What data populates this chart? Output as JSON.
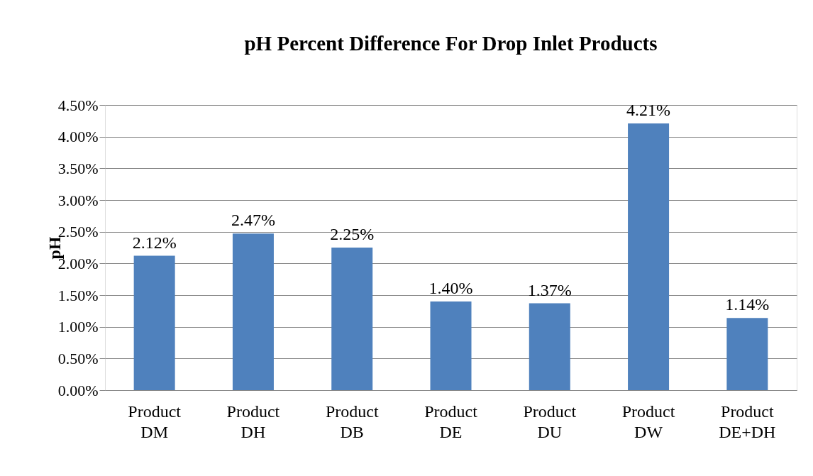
{
  "chart_data": {
    "type": "bar",
    "title": "pH Percent Difference  For Drop Inlet Products",
    "ylabel": "pH",
    "categories": [
      "Product DM",
      "Product DH",
      "Product DB",
      "Product DE",
      "Product DU",
      "Product DW",
      "Product DE+DH"
    ],
    "values": [
      2.12,
      2.47,
      2.25,
      1.4,
      1.37,
      4.21,
      1.14
    ],
    "value_labels": [
      "2.12%",
      "2.47%",
      "2.25%",
      "1.40%",
      "1.37%",
      "4.21%",
      "1.14%"
    ],
    "color": "#4f81bd",
    "ylim": [
      0,
      4.5
    ],
    "yticks": [
      {
        "value": 0,
        "label": "0.00%"
      },
      {
        "value": 0.5,
        "label": "0.50%"
      },
      {
        "value": 1,
        "label": "1.00%"
      },
      {
        "value": 1.5,
        "label": "1.50%"
      },
      {
        "value": 2,
        "label": "2.00%"
      },
      {
        "value": 2.5,
        "label": "2.50%"
      },
      {
        "value": 3,
        "label": "3.00%"
      },
      {
        "value": 3.5,
        "label": "3.50%"
      },
      {
        "value": 4,
        "label": "4.00%"
      },
      {
        "value": 4.5,
        "label": "4.50%"
      }
    ],
    "grid": "y"
  }
}
